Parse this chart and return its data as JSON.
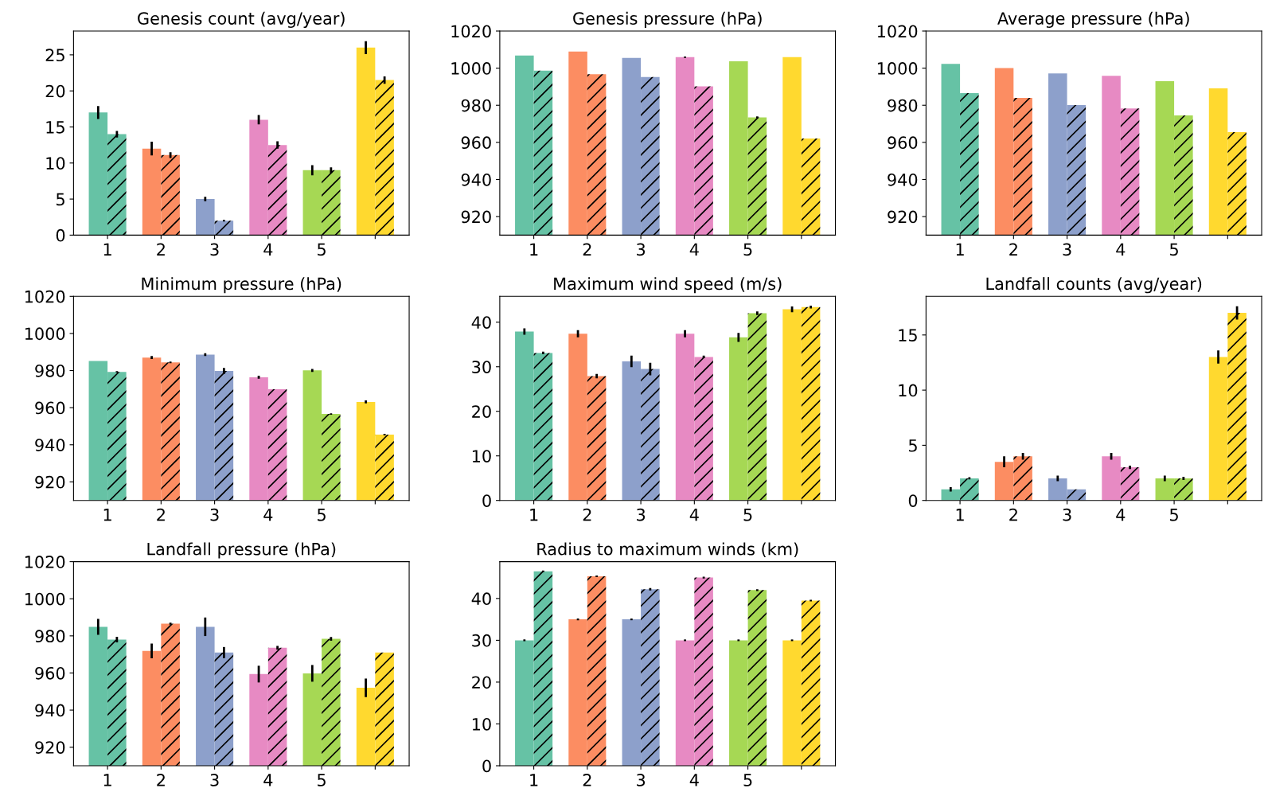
{
  "chart_data": [
    {
      "type": "bar",
      "title": "Genesis count (avg/year)",
      "categories": [
        "1",
        "2",
        "3",
        "4",
        "5",
        null
      ],
      "ylim": [
        0,
        28.3
      ],
      "yticks": [
        0,
        5,
        10,
        15,
        20,
        25
      ],
      "grid": false,
      "legend": false,
      "series": [
        {
          "colors": [
            "#66c2a5",
            "#fc8d62",
            "#8da0cb",
            "#e78ac3",
            "#a6d854",
            "#ffd92f"
          ],
          "values": [
            17,
            12,
            5,
            16,
            9,
            26
          ],
          "errors": [
            0.9,
            0.95,
            0.3,
            0.65,
            0.7,
            0.9
          ]
        },
        {
          "colors": [
            "#66c2a5",
            "#fc8d62",
            "#8da0cb",
            "#e78ac3",
            "#a6d854",
            "#ffd92f"
          ],
          "values": [
            14,
            11.1,
            2,
            12.5,
            9,
            21.5
          ],
          "errors": [
            0.45,
            0.4,
            0.1,
            0.5,
            0.4,
            0.5
          ]
        }
      ]
    },
    {
      "type": "bar",
      "title": "Genesis pressure (hPa)",
      "categories": [
        "1",
        "2",
        "3",
        "4",
        "5",
        null
      ],
      "ylim": [
        910,
        1020
      ],
      "yticks": [
        920,
        940,
        960,
        980,
        1000,
        1020
      ],
      "grid": false,
      "legend": false,
      "series": [
        {
          "colors": [
            "#66c2a5",
            "#fc8d62",
            "#8da0cb",
            "#e78ac3",
            "#a6d854",
            "#ffd92f"
          ],
          "values": [
            1006.8,
            1008.9,
            1005.5,
            1005.9,
            1003.7,
            1005.9
          ],
          "errors": [
            null,
            null,
            null,
            0.4,
            null,
            null
          ]
        },
        {
          "colors": [
            "#66c2a5",
            "#fc8d62",
            "#8da0cb",
            "#e78ac3",
            "#a6d854",
            "#ffd92f"
          ],
          "values": [
            998.7,
            996.7,
            995.2,
            990.2,
            973.5,
            962.1
          ],
          "errors": [
            null,
            null,
            null,
            null,
            0.5,
            null
          ]
        }
      ]
    },
    {
      "type": "bar",
      "title": "Average pressure (hPa)",
      "categories": [
        "1",
        "2",
        "3",
        "4",
        "5",
        null
      ],
      "ylim": [
        910,
        1020
      ],
      "yticks": [
        920,
        940,
        960,
        980,
        1000,
        1020
      ],
      "grid": false,
      "legend": false,
      "series": [
        {
          "colors": [
            "#66c2a5",
            "#fc8d62",
            "#8da0cb",
            "#e78ac3",
            "#a6d854",
            "#ffd92f"
          ],
          "values": [
            1002.3,
            1000.1,
            997.2,
            995.9,
            993.0,
            989.1
          ]
        },
        {
          "colors": [
            "#66c2a5",
            "#fc8d62",
            "#8da0cb",
            "#e78ac3",
            "#a6d854",
            "#ffd92f"
          ],
          "values": [
            986.5,
            984.0,
            980.1,
            978.3,
            974.5,
            965.5
          ]
        }
      ]
    },
    {
      "type": "bar",
      "title": "Minimum pressure (hPa)",
      "categories": [
        "1",
        "2",
        "3",
        "4",
        "5",
        null
      ],
      "ylim": [
        910,
        1020
      ],
      "yticks": [
        920,
        940,
        960,
        980,
        1000,
        1020
      ],
      "grid": false,
      "legend": false,
      "series": [
        {
          "colors": [
            "#66c2a5",
            "#fc8d62",
            "#8da0cb",
            "#e78ac3",
            "#a6d854",
            "#ffd92f"
          ],
          "values": [
            985.2,
            987.0,
            988.6,
            976.4,
            980.1,
            963.1
          ],
          "errors": [
            null,
            0.8,
            0.8,
            0.8,
            0.8,
            0.8
          ]
        },
        {
          "colors": [
            "#66c2a5",
            "#fc8d62",
            "#8da0cb",
            "#e78ac3",
            "#a6d854",
            "#ffd92f"
          ],
          "values": [
            979.3,
            984.4,
            979.8,
            969.9,
            956.6,
            945.5
          ],
          "errors": [
            0.4,
            0.4,
            1.6,
            null,
            0.4,
            0.4
          ]
        }
      ]
    },
    {
      "type": "bar",
      "title": "Maximum wind speed (m/s)",
      "categories": [
        "1",
        "2",
        "3",
        "4",
        "5",
        null
      ],
      "ylim": [
        0,
        45.8
      ],
      "yticks": [
        0,
        10,
        20,
        30,
        40
      ],
      "grid": false,
      "legend": false,
      "series": [
        {
          "colors": [
            "#66c2a5",
            "#fc8d62",
            "#8da0cb",
            "#e78ac3",
            "#a6d854",
            "#ffd92f"
          ],
          "values": [
            37.9,
            37.4,
            31.2,
            37.4,
            36.6,
            42.9
          ],
          "errors": [
            0.7,
            0.8,
            1.3,
            0.8,
            1.0,
            0.65
          ]
        },
        {
          "colors": [
            "#66c2a5",
            "#fc8d62",
            "#8da0cb",
            "#e78ac3",
            "#a6d854",
            "#ffd92f"
          ],
          "values": [
            33.1,
            27.9,
            29.5,
            32.2,
            42.0,
            43.4
          ],
          "errors": [
            0.3,
            0.5,
            1.4,
            0.3,
            0.4,
            0.3
          ]
        }
      ]
    },
    {
      "type": "bar",
      "title": "Landfall counts (avg/year)",
      "categories": [
        "1",
        "2",
        "3",
        "4",
        "5",
        null
      ],
      "ylim": [
        0,
        18.5
      ],
      "yticks": [
        0,
        5,
        10,
        15
      ],
      "grid": false,
      "legend": false,
      "series": [
        {
          "colors": [
            "#66c2a5",
            "#fc8d62",
            "#8da0cb",
            "#e78ac3",
            "#a6d854",
            "#ffd92f"
          ],
          "values": [
            1.0,
            3.5,
            2.0,
            4.0,
            2.0,
            13.0
          ],
          "errors": [
            0.2,
            0.5,
            0.25,
            0.3,
            0.25,
            0.6
          ]
        },
        {
          "colors": [
            "#66c2a5",
            "#fc8d62",
            "#8da0cb",
            "#e78ac3",
            "#a6d854",
            "#ffd92f"
          ],
          "values": [
            2.0,
            4.0,
            1.0,
            3.0,
            2.0,
            17.0
          ],
          "errors": [
            0.1,
            0.3,
            null,
            0.15,
            0.15,
            0.6
          ]
        }
      ]
    },
    {
      "type": "bar",
      "title": "Landfall pressure (hPa)",
      "categories": [
        "1",
        "2",
        "3",
        "4",
        "5",
        null
      ],
      "ylim": [
        910,
        1020
      ],
      "yticks": [
        920,
        940,
        960,
        980,
        1000,
        1020
      ],
      "grid": false,
      "legend": false,
      "series": [
        {
          "colors": [
            "#66c2a5",
            "#fc8d62",
            "#8da0cb",
            "#e78ac3",
            "#a6d854",
            "#ffd92f"
          ],
          "values": [
            984.9,
            971.9,
            984.9,
            959.4,
            959.8,
            952.0
          ],
          "errors": [
            4.3,
            4.0,
            5.0,
            4.5,
            4.5,
            5.0
          ]
        },
        {
          "colors": [
            "#66c2a5",
            "#fc8d62",
            "#8da0cb",
            "#e78ac3",
            "#a6d854",
            "#ffd92f"
          ],
          "values": [
            978.0,
            986.6,
            971.0,
            973.6,
            978.4,
            971.0
          ],
          "errors": [
            1.5,
            0.5,
            3.0,
            1.0,
            1.0,
            null
          ]
        }
      ]
    },
    {
      "type": "bar",
      "title": "Radius to maximum winds (km)",
      "categories": [
        "1",
        "2",
        "3",
        "4",
        "5",
        null
      ],
      "ylim": [
        0,
        48.8
      ],
      "yticks": [
        0,
        10,
        20,
        30,
        40
      ],
      "grid": false,
      "legend": false,
      "series": [
        {
          "colors": [
            "#66c2a5",
            "#fc8d62",
            "#8da0cb",
            "#e78ac3",
            "#a6d854",
            "#ffd92f"
          ],
          "values": [
            30,
            35,
            35,
            30,
            30,
            30
          ],
          "errors": [
            0.2,
            0.2,
            0.2,
            0.2,
            0.2,
            0.2
          ]
        },
        {
          "colors": [
            "#66c2a5",
            "#fc8d62",
            "#8da0cb",
            "#e78ac3",
            "#a6d854",
            "#ffd92f"
          ],
          "values": [
            46.5,
            45.3,
            42.2,
            45.0,
            42.0,
            39.5
          ],
          "errors": [
            0.2,
            0.2,
            0.3,
            0.2,
            0.2,
            0.2
          ]
        }
      ]
    }
  ]
}
